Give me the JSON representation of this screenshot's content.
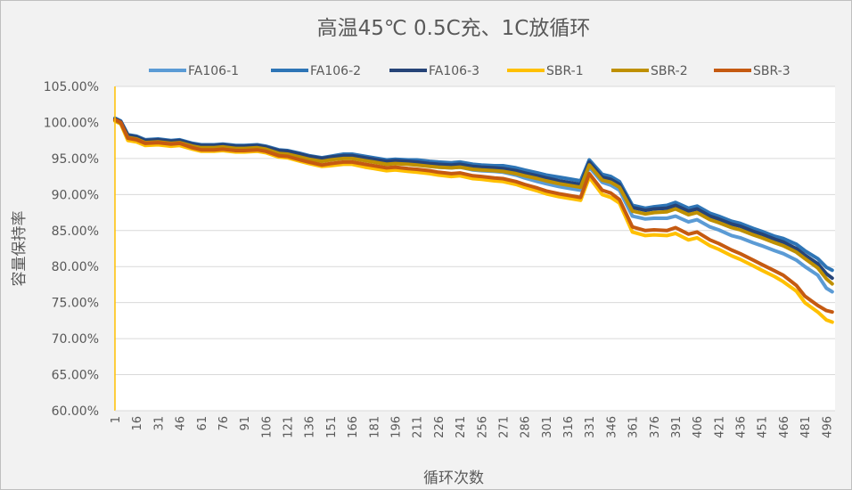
{
  "chart_data": {
    "type": "line",
    "title": "高温45℃ 0.5C充、1C放循环",
    "xlabel": "循环次数",
    "ylabel": "容量保持率",
    "ylim": [
      60,
      105
    ],
    "y_ticks": [
      "105.00%",
      "100.00%",
      "95.00%",
      "90.00%",
      "85.00%",
      "80.00%",
      "75.00%",
      "70.00%",
      "65.00%",
      "60.00%"
    ],
    "x_ticks": [
      "1",
      "16",
      "31",
      "46",
      "61",
      "76",
      "91",
      "106",
      "121",
      "136",
      "151",
      "166",
      "181",
      "196",
      "211",
      "226",
      "241",
      "256",
      "271",
      "286",
      "301",
      "316",
      "331",
      "346",
      "361",
      "376",
      "391",
      "406",
      "421",
      "436",
      "451",
      "466",
      "481",
      "496"
    ],
    "xlim": [
      1,
      502
    ],
    "grid": true,
    "legend_position": "top",
    "x": [
      1,
      5,
      10,
      16,
      22,
      31,
      40,
      46,
      55,
      61,
      70,
      76,
      85,
      91,
      100,
      106,
      115,
      121,
      130,
      136,
      145,
      151,
      160,
      166,
      175,
      181,
      190,
      196,
      205,
      211,
      220,
      226,
      235,
      241,
      250,
      256,
      265,
      271,
      280,
      286,
      295,
      301,
      310,
      316,
      325,
      331,
      340,
      346,
      352,
      361,
      370,
      376,
      385,
      391,
      400,
      406,
      415,
      421,
      430,
      436,
      445,
      451,
      460,
      466,
      475,
      481,
      490,
      496,
      500
    ],
    "series": [
      {
        "name": "FA106-1",
        "color": "#5b9bd5",
        "values": [
          100.4,
          100.0,
          98.0,
          97.9,
          97.4,
          97.5,
          97.3,
          97.4,
          96.9,
          96.6,
          96.6,
          96.7,
          96.5,
          96.5,
          96.6,
          96.4,
          95.9,
          95.8,
          95.4,
          95.1,
          94.8,
          94.9,
          95.1,
          95.1,
          94.8,
          94.6,
          94.3,
          94.4,
          94.3,
          94.2,
          94.0,
          93.8,
          93.7,
          93.8,
          93.4,
          93.3,
          93.2,
          93.1,
          92.7,
          92.3,
          91.8,
          91.5,
          91.1,
          90.9,
          90.6,
          93.8,
          91.7,
          91.3,
          90.6,
          87.0,
          86.6,
          86.7,
          86.7,
          87.0,
          86.2,
          86.5,
          85.5,
          85.1,
          84.3,
          84.0,
          83.3,
          82.9,
          82.2,
          81.8,
          80.9,
          80.0,
          78.8,
          77.0,
          76.5
        ]
      },
      {
        "name": "FA106-2",
        "color": "#2e75b6",
        "values": [
          100.6,
          100.2,
          98.3,
          98.1,
          97.6,
          97.7,
          97.5,
          97.6,
          97.1,
          96.9,
          96.9,
          97.0,
          96.8,
          96.8,
          96.9,
          96.7,
          96.2,
          96.1,
          95.7,
          95.4,
          95.1,
          95.3,
          95.6,
          95.6,
          95.3,
          95.1,
          94.8,
          94.9,
          94.8,
          94.8,
          94.6,
          94.5,
          94.4,
          94.5,
          94.2,
          94.1,
          94.0,
          94.0,
          93.7,
          93.4,
          93.0,
          92.7,
          92.4,
          92.2,
          91.9,
          94.8,
          92.8,
          92.5,
          91.8,
          88.5,
          88.1,
          88.3,
          88.5,
          88.9,
          88.1,
          88.4,
          87.4,
          87.0,
          86.3,
          86.0,
          85.3,
          84.9,
          84.2,
          83.9,
          83.1,
          82.2,
          81.1,
          79.9,
          79.5
        ]
      },
      {
        "name": "FA106-3",
        "color": "#264478",
        "values": [
          100.5,
          100.1,
          98.2,
          98.0,
          97.5,
          97.6,
          97.4,
          97.5,
          97.0,
          96.8,
          96.8,
          96.9,
          96.7,
          96.7,
          96.8,
          96.6,
          96.1,
          96.0,
          95.6,
          95.3,
          95.0,
          95.2,
          95.4,
          95.4,
          95.1,
          94.9,
          94.6,
          94.7,
          94.6,
          94.5,
          94.3,
          94.2,
          94.1,
          94.2,
          93.9,
          93.8,
          93.7,
          93.6,
          93.3,
          93.0,
          92.6,
          92.3,
          91.9,
          91.7,
          91.4,
          94.5,
          92.4,
          92.1,
          91.4,
          88.2,
          87.8,
          88.0,
          88.1,
          88.5,
          87.7,
          88.0,
          87.0,
          86.6,
          85.9,
          85.6,
          84.9,
          84.5,
          83.8,
          83.4,
          82.5,
          81.6,
          80.4,
          79.0,
          78.4
        ]
      },
      {
        "name": "SBR-1",
        "color": "#ffc000",
        "values": [
          100.2,
          99.8,
          97.5,
          97.3,
          96.8,
          96.9,
          96.7,
          96.8,
          96.3,
          96.0,
          96.0,
          96.1,
          95.9,
          95.9,
          96.0,
          95.8,
          95.2,
          95.1,
          94.6,
          94.3,
          93.9,
          94.0,
          94.2,
          94.2,
          93.8,
          93.6,
          93.3,
          93.4,
          93.2,
          93.1,
          92.9,
          92.7,
          92.5,
          92.6,
          92.2,
          92.1,
          91.9,
          91.8,
          91.4,
          91.0,
          90.5,
          90.1,
          89.7,
          89.5,
          89.2,
          92.4,
          90.0,
          89.6,
          88.8,
          84.8,
          84.3,
          84.4,
          84.3,
          84.6,
          83.7,
          84.0,
          82.9,
          82.4,
          81.5,
          81.0,
          80.1,
          79.5,
          78.6,
          77.9,
          76.6,
          75.0,
          73.7,
          72.6,
          72.3
        ]
      },
      {
        "name": "SBR-2",
        "color": "#bf9000",
        "values": [
          100.3,
          99.9,
          97.9,
          97.7,
          97.2,
          97.3,
          97.1,
          97.2,
          96.7,
          96.5,
          96.5,
          96.6,
          96.4,
          96.4,
          96.5,
          96.3,
          95.7,
          95.6,
          95.2,
          94.9,
          94.6,
          94.8,
          95.0,
          95.0,
          94.7,
          94.5,
          94.2,
          94.3,
          94.2,
          94.1,
          93.9,
          93.8,
          93.7,
          93.8,
          93.5,
          93.4,
          93.3,
          93.2,
          92.9,
          92.6,
          92.2,
          91.9,
          91.5,
          91.3,
          91.0,
          94.1,
          92.0,
          91.7,
          91.0,
          87.7,
          87.3,
          87.5,
          87.6,
          88.0,
          87.2,
          87.5,
          86.5,
          86.1,
          85.4,
          85.1,
          84.4,
          84.0,
          83.3,
          82.9,
          82.0,
          81.1,
          79.8,
          78.3,
          77.6
        ]
      },
      {
        "name": "SBR-3",
        "color": "#c55a11",
        "values": [
          100.4,
          100.0,
          97.8,
          97.6,
          97.1,
          97.2,
          97.0,
          97.1,
          96.5,
          96.2,
          96.2,
          96.3,
          96.1,
          96.1,
          96.2,
          96.0,
          95.4,
          95.3,
          94.8,
          94.5,
          94.1,
          94.3,
          94.5,
          94.5,
          94.2,
          94.0,
          93.7,
          93.8,
          93.6,
          93.5,
          93.3,
          93.1,
          92.9,
          93.0,
          92.6,
          92.5,
          92.3,
          92.2,
          91.8,
          91.4,
          90.9,
          90.5,
          90.1,
          89.9,
          89.6,
          92.9,
          90.6,
          90.2,
          89.3,
          85.5,
          85.0,
          85.1,
          85.0,
          85.4,
          84.5,
          84.8,
          83.7,
          83.2,
          82.3,
          81.8,
          80.9,
          80.3,
          79.4,
          78.8,
          77.4,
          75.9,
          74.6,
          73.9,
          73.7
        ]
      }
    ]
  }
}
